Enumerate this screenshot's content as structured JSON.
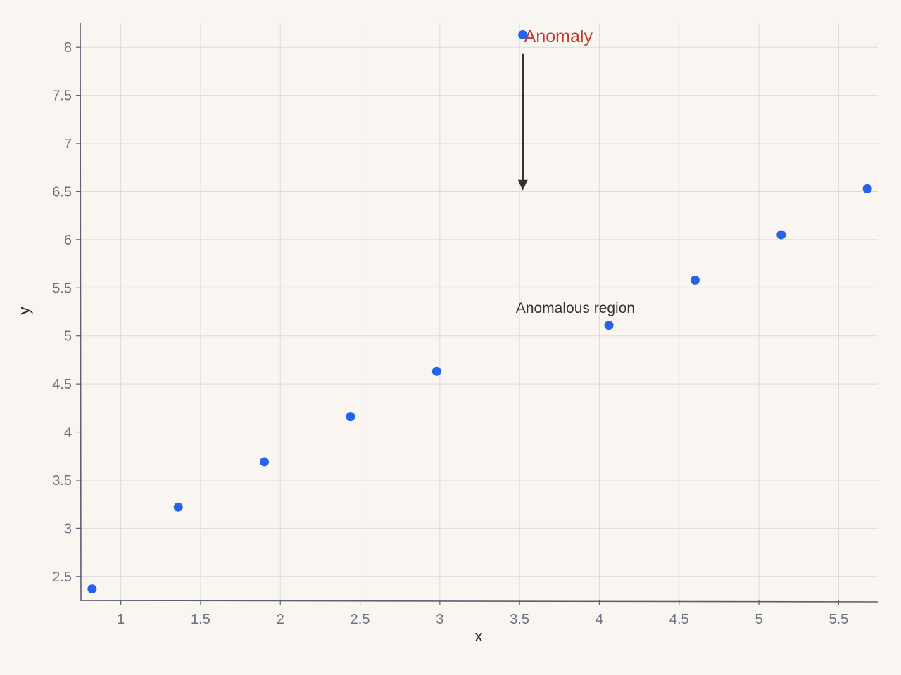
{
  "chart_data": {
    "type": "scatter",
    "title": "",
    "xlabel": "x",
    "ylabel": "y",
    "xlim": [
      0.75,
      5.75
    ],
    "ylim": [
      2.25,
      8.25
    ],
    "grid": true,
    "xticks": [
      1,
      1.5,
      2,
      2.5,
      3,
      3.5,
      4,
      4.5,
      5,
      5.5
    ],
    "yticks": [
      2.5,
      3,
      3.5,
      4,
      4.5,
      5,
      5.5,
      6,
      6.5,
      7,
      7.5,
      8
    ],
    "series": [
      {
        "color": "#2563eb",
        "points": [
          {
            "x": 0.82,
            "y": 2.37
          },
          {
            "x": 1.36,
            "y": 3.22
          },
          {
            "x": 1.9,
            "y": 3.69
          },
          {
            "x": 2.44,
            "y": 4.16
          },
          {
            "x": 2.98,
            "y": 4.63
          },
          {
            "x": 3.52,
            "y": 8.13
          },
          {
            "x": 4.06,
            "y": 5.11
          },
          {
            "x": 4.6,
            "y": 5.58
          },
          {
            "x": 5.14,
            "y": 6.05
          },
          {
            "x": 5.68,
            "y": 6.53
          }
        ]
      }
    ],
    "annotations": [
      {
        "text": "Anomaly",
        "x": 3.52,
        "y": 8.12,
        "color": "#c0392b",
        "arrow_to": {
          "x": 3.52,
          "y": 6.52
        }
      },
      {
        "text": "Anomalous region",
        "x": 3.85,
        "y": 5.24,
        "color": "#333333"
      }
    ]
  }
}
